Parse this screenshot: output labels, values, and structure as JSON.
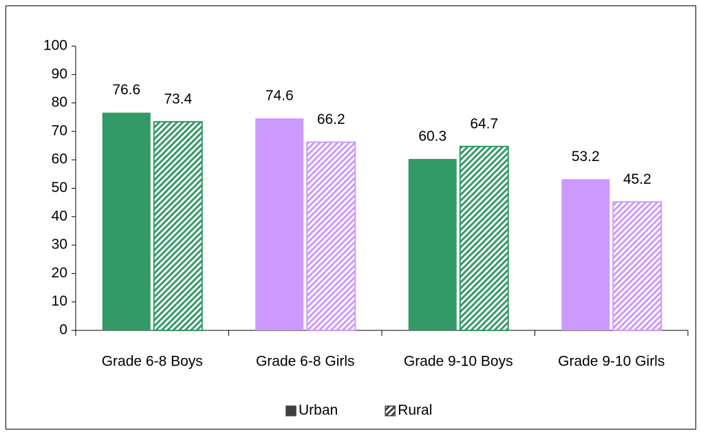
{
  "chart_data": {
    "type": "bar",
    "categories": [
      "Grade 6-8 Boys",
      "Grade 6-8 Girls",
      "Grade 9-10 Boys",
      "Grade 9-10 Girls"
    ],
    "category_colors": [
      "#339966",
      "#cc99ff",
      "#339966",
      "#cc99ff"
    ],
    "series": [
      {
        "name": "Urban",
        "color": "#404040",
        "pattern": "solid",
        "values": [
          76.6,
          74.6,
          60.3,
          53.2
        ]
      },
      {
        "name": "Rural",
        "color": "#404040",
        "pattern": "hatch",
        "values": [
          73.4,
          66.2,
          64.7,
          45.2
        ]
      }
    ],
    "ylim": [
      0,
      100
    ],
    "yticks": [
      0,
      10,
      20,
      30,
      40,
      50,
      60,
      70,
      80,
      90,
      100
    ],
    "grid": false,
    "legend": "bottom"
  }
}
